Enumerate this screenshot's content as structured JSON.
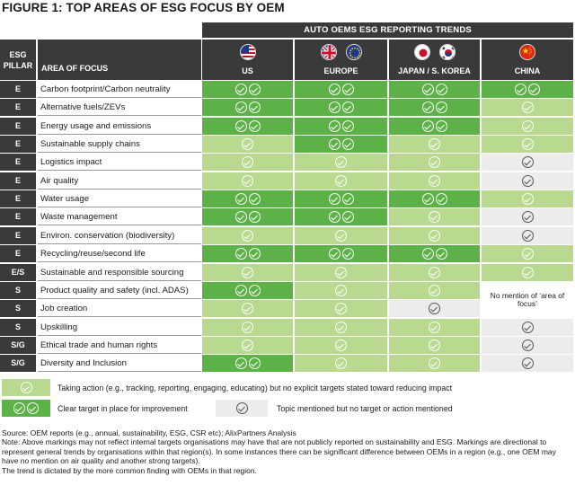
{
  "title": "FIGURE 1: TOP AREAS OF ESG FOCUS BY OEM",
  "trend_header": "AUTO OEMS ESG REPORTING TRENDS",
  "headers": {
    "pillar_line1": "ESG",
    "pillar_line2": "PILLAR",
    "area": "AREA OF FOCUS",
    "regions": [
      "US",
      "EUROPE",
      "JAPAN / S. KOREA",
      "CHINA"
    ]
  },
  "rows": [
    {
      "pillar": "E",
      "area": "Carbon footprint/Carbon neutrality",
      "levels": [
        2,
        2,
        2,
        2
      ]
    },
    {
      "pillar": "E",
      "area": "Alternative fuels/ZEVs",
      "levels": [
        2,
        2,
        2,
        1
      ]
    },
    {
      "pillar": "E",
      "area": "Energy usage and emissions",
      "levels": [
        2,
        2,
        2,
        1
      ]
    },
    {
      "pillar": "E",
      "area": "Sustainable supply chains",
      "levels": [
        1,
        2,
        1,
        1
      ]
    },
    {
      "pillar": "E",
      "area": "Logistics impact",
      "levels": [
        1,
        1,
        1,
        0
      ]
    },
    {
      "pillar": "E",
      "area": "Air quality",
      "levels": [
        1,
        1,
        1,
        0
      ]
    },
    {
      "pillar": "E",
      "area": "Water usage",
      "levels": [
        2,
        2,
        2,
        1
      ]
    },
    {
      "pillar": "E",
      "area": "Waste management",
      "levels": [
        2,
        2,
        1,
        0
      ]
    },
    {
      "pillar": "E",
      "area": "Environ. conservation (biodiversity)",
      "levels": [
        1,
        1,
        1,
        0
      ]
    },
    {
      "pillar": "E",
      "area": "Recycling/reuse/second life",
      "levels": [
        2,
        2,
        2,
        1
      ]
    },
    {
      "pillar": "E/S",
      "area": "Sustainable and responsible sourcing",
      "levels": [
        1,
        1,
        1,
        1
      ]
    },
    {
      "pillar": "S",
      "area": "Product quality and safety (incl. ADAS)",
      "levels": [
        2,
        1,
        1,
        -1
      ]
    },
    {
      "pillar": "S",
      "area": "Job creation",
      "levels": [
        1,
        1,
        0,
        -1
      ]
    },
    {
      "pillar": "S",
      "area": "Upskilling",
      "levels": [
        1,
        1,
        1,
        0
      ]
    },
    {
      "pillar": "S/G",
      "area": "Ethical trade and human rights",
      "levels": [
        1,
        1,
        1,
        0
      ]
    },
    {
      "pillar": "S/G",
      "area": "Diversity and Inclusion",
      "levels": [
        2,
        1,
        1,
        0
      ]
    }
  ],
  "china_note": "No mention of ‘area of focus’",
  "legend": {
    "light": "Taking action (e.g., tracking, reporting, engaging, educating) but no explicit targets stated toward reducing impact",
    "dark": "Clear target in place for improvement",
    "grey": "Topic mentioned but no target or action mentioned"
  },
  "source_lines": [
    "Source: OEM reports (e.g., annual, sustainability, ESG, CSR etc); AlixPartners Analysis",
    "Note: Above markings may not reflect internal targets organisations may have that are not publicly reported on sustainability and ESG. Markings are directional to represent general trends by organisations within that region(s). In some instances there can be significant difference between OEMs in a region (e.g., one OEM may have no mention on air quality and another strong targets).",
    "The trend is dictated by the more common finding with OEMs in that region."
  ],
  "colors": {
    "dark_green": "#5cb246",
    "light_green": "#b8d98f",
    "grey": "#ececec",
    "header": "#3a3a3a"
  }
}
